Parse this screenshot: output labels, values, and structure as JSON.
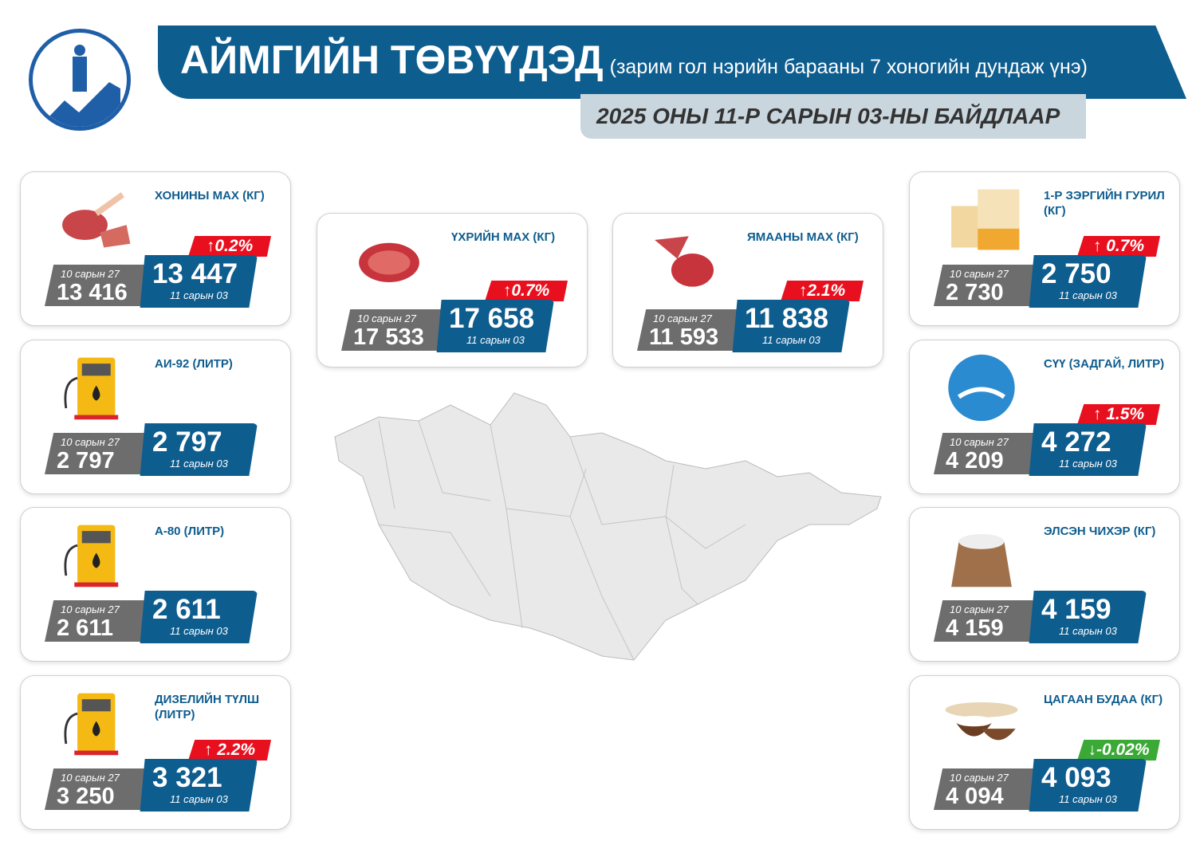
{
  "header": {
    "title": "АЙМГИЙН ТӨВҮҮДЭД",
    "subtitle": "(зарим гол нэрийн барааны 7 хоногийн дундаж үнэ)",
    "date": "2025 ОНЫ 11-Р САРЫН 03-НЫ БАЙДЛААР"
  },
  "colors": {
    "primary": "#0e5d8f",
    "increase": "#e8101e",
    "decrease": "#3aa935",
    "previous": "#6d6d6d"
  },
  "cards": [
    {
      "pos": "l1",
      "icon": "mutton-icon",
      "title": "ХОНИНЫ МАХ (КГ)",
      "prev_label": "10 сарын 27",
      "prev": "13 416",
      "cur": "13 447",
      "cur_label": "11 сарын 03",
      "change": "↑0.2%",
      "dir": "up"
    },
    {
      "pos": "l2",
      "icon": "fuel-pump-icon",
      "title": "АИ-92 (ЛИТР)",
      "prev_label": "10 сарын 27",
      "prev": "2 797",
      "cur": "2 797",
      "cur_label": "11 сарын 03",
      "change": null,
      "dir": null
    },
    {
      "pos": "l3",
      "icon": "fuel-pump-icon",
      "title": "А-80 (ЛИТР)",
      "prev_label": "10 сарын 27",
      "prev": "2 611",
      "cur": "2 611",
      "cur_label": "11 сарын 03",
      "change": null,
      "dir": null
    },
    {
      "pos": "l4",
      "icon": "fuel-pump-icon",
      "title": "ДИЗЕЛИЙН ТҮЛШ (ЛИТР)",
      "prev_label": "10 сарын 27",
      "prev": "3 250",
      "cur": "3 321",
      "cur_label": "11 сарын 03",
      "change": "↑ 2.2%",
      "dir": "up"
    },
    {
      "pos": "m1",
      "icon": "beef-icon",
      "title": "ҮХРИЙН МАХ (КГ)",
      "prev_label": "10 сарын 27",
      "prev": "17 533",
      "cur": "17 658",
      "cur_label": "11 сарын 03",
      "change": "↑0.7%",
      "dir": "up"
    },
    {
      "pos": "m2",
      "icon": "goat-meat-icon",
      "title": "ЯМААНЫ МАХ (КГ)",
      "prev_label": "10 сарын 27",
      "prev": "11 593",
      "cur": "11 838",
      "cur_label": "11 сарын 03",
      "change": "↑2.1%",
      "dir": "up"
    },
    {
      "pos": "r1",
      "icon": "flour-icon",
      "title": "1-Р ЗЭРГИЙН ГУРИЛ (КГ)",
      "prev_label": "10 сарын 27",
      "prev": "2 730",
      "cur": "2 750",
      "cur_label": "11 сарын 03",
      "change": "↑ 0.7%",
      "dir": "up"
    },
    {
      "pos": "r2",
      "icon": "milk-icon",
      "title": "СҮҮ (ЗАДГАЙ, ЛИТР)",
      "prev_label": "10 сарын 27",
      "prev": "4 209",
      "cur": "4 272",
      "cur_label": "11 сарын 03",
      "change": "↑ 1.5%",
      "dir": "up"
    },
    {
      "pos": "r3",
      "icon": "sugar-sack-icon",
      "title": "ЭЛСЭН ЧИХЭР (КГ)",
      "prev_label": "10 сарын 27",
      "prev": "4 159",
      "cur": "4 159",
      "cur_label": "11 сарын 03",
      "change": null,
      "dir": null
    },
    {
      "pos": "r4",
      "icon": "rice-bowl-icon",
      "title": "ЦАГААН БУДАА (КГ)",
      "prev_label": "10 сарын 27",
      "prev": "4 094",
      "cur": "4 093",
      "cur_label": "11 сарын 03",
      "change": "↓-0.02%",
      "dir": "down"
    }
  ]
}
